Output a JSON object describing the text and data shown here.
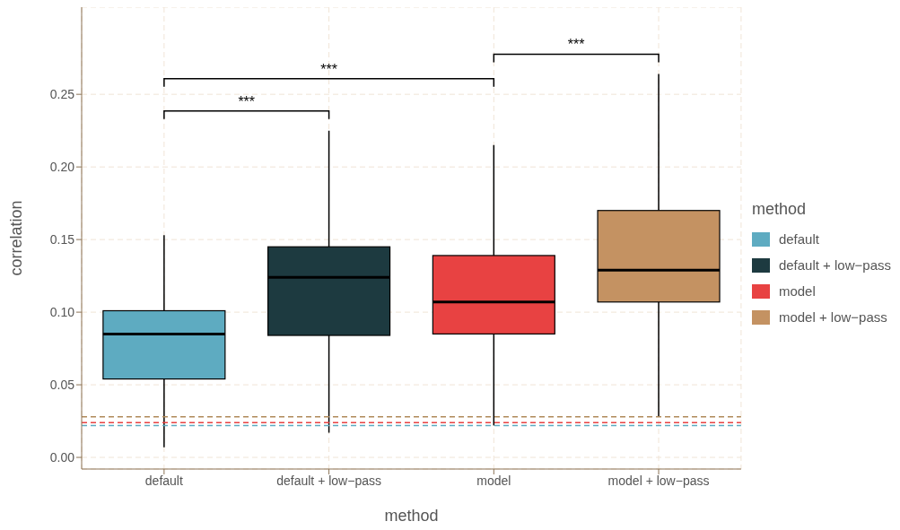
{
  "chart_data": {
    "type": "box",
    "xlabel": "method",
    "ylabel": "correlation",
    "legend_title": "method",
    "categories": [
      "default",
      "default + low−pass",
      "model",
      "model + low−pass"
    ],
    "series": [
      {
        "name": "default",
        "color": "#5eabc1",
        "boxes": [
          {
            "low": 0.007,
            "q1": 0.054,
            "median": 0.085,
            "q3": 0.101,
            "high": 0.153
          },
          null,
          null,
          null
        ]
      },
      {
        "name": "default + low−pass",
        "color": "#1d3a40",
        "boxes": [
          null,
          {
            "low": 0.017,
            "q1": 0.084,
            "median": 0.124,
            "q3": 0.145,
            "high": 0.225
          },
          null,
          null
        ]
      },
      {
        "name": "model",
        "color": "#e84242",
        "boxes": [
          null,
          null,
          {
            "low": 0.022,
            "q1": 0.085,
            "median": 0.107,
            "q3": 0.139,
            "high": 0.215
          },
          null
        ]
      },
      {
        "name": "model + low−pass",
        "color": "#c49262",
        "boxes": [
          null,
          null,
          null,
          {
            "low": 0.028,
            "q1": 0.107,
            "median": 0.129,
            "q3": 0.17,
            "high": 0.264
          }
        ]
      }
    ],
    "ylim": [
      -0.008,
      0.31
    ],
    "yticks": [
      {
        "value": 0,
        "label": "0.00"
      },
      {
        "value": 0.05,
        "label": "0.05"
      },
      {
        "value": 0.1,
        "label": "0.10"
      },
      {
        "value": 0.15,
        "label": "0.15"
      },
      {
        "value": 0.2,
        "label": "0.20"
      },
      {
        "value": 0.25,
        "label": "0.25"
      }
    ],
    "ref_lines": [
      {
        "axis": "y",
        "value": 0.028,
        "color": "#b08a5a",
        "line_style": "dashed"
      },
      {
        "axis": "y",
        "value": 0.024,
        "color": "#e84242",
        "line_style": "dashed"
      },
      {
        "axis": "y",
        "value": 0.022,
        "color": "#5eabc1",
        "line_style": "dashed"
      }
    ],
    "annotations": [
      "***",
      "***",
      "***"
    ],
    "grid": true,
    "legend": "right"
  }
}
